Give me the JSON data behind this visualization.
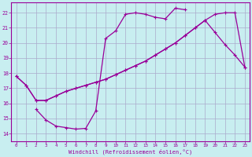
{
  "xlabel": "Windchill (Refroidissement éolien,°C)",
  "bg_color": "#c8eef0",
  "grid_color": "#aaaacc",
  "line_color": "#990099",
  "xlim": [
    -0.5,
    23.5
  ],
  "ylim": [
    13.5,
    22.7
  ],
  "yticks": [
    14,
    15,
    16,
    17,
    18,
    19,
    20,
    21,
    22
  ],
  "xticks": [
    0,
    1,
    2,
    3,
    4,
    5,
    6,
    7,
    8,
    9,
    10,
    11,
    12,
    13,
    14,
    15,
    16,
    17,
    18,
    19,
    20,
    21,
    22,
    23
  ],
  "line1_x": [
    0,
    1,
    2,
    3,
    4,
    5,
    6,
    7,
    8,
    9,
    10,
    11,
    12,
    13,
    14,
    15,
    16,
    17,
    18,
    19,
    20,
    21,
    22,
    23
  ],
  "line1_y": [
    17.8,
    17.2,
    16.2,
    16.2,
    16.5,
    16.8,
    17.0,
    17.2,
    17.4,
    17.6,
    17.9,
    18.2,
    18.5,
    18.8,
    19.2,
    19.6,
    20.0,
    20.5,
    21.0,
    21.5,
    21.9,
    22.0,
    22.0,
    18.4
  ],
  "line2_x": [
    0,
    1,
    2,
    3,
    4,
    5,
    6,
    7,
    8,
    9,
    10,
    11,
    12,
    13,
    14,
    15,
    16,
    17,
    18,
    19,
    20,
    21,
    22,
    23
  ],
  "line2_y": [
    17.8,
    17.2,
    16.2,
    16.2,
    16.5,
    16.8,
    17.0,
    17.2,
    17.4,
    17.6,
    17.9,
    18.2,
    18.5,
    18.8,
    19.2,
    19.6,
    20.0,
    20.5,
    21.0,
    21.5,
    20.7,
    19.9,
    19.2,
    18.4
  ],
  "line3_x": [
    2,
    3,
    4,
    5,
    6,
    7,
    8,
    9,
    10,
    11,
    12,
    13,
    14,
    15,
    16,
    17
  ],
  "line3_y": [
    15.6,
    14.9,
    14.5,
    14.4,
    14.3,
    14.35,
    15.5,
    20.3,
    20.8,
    21.9,
    22.0,
    21.9,
    21.7,
    21.6,
    22.3,
    22.2
  ]
}
